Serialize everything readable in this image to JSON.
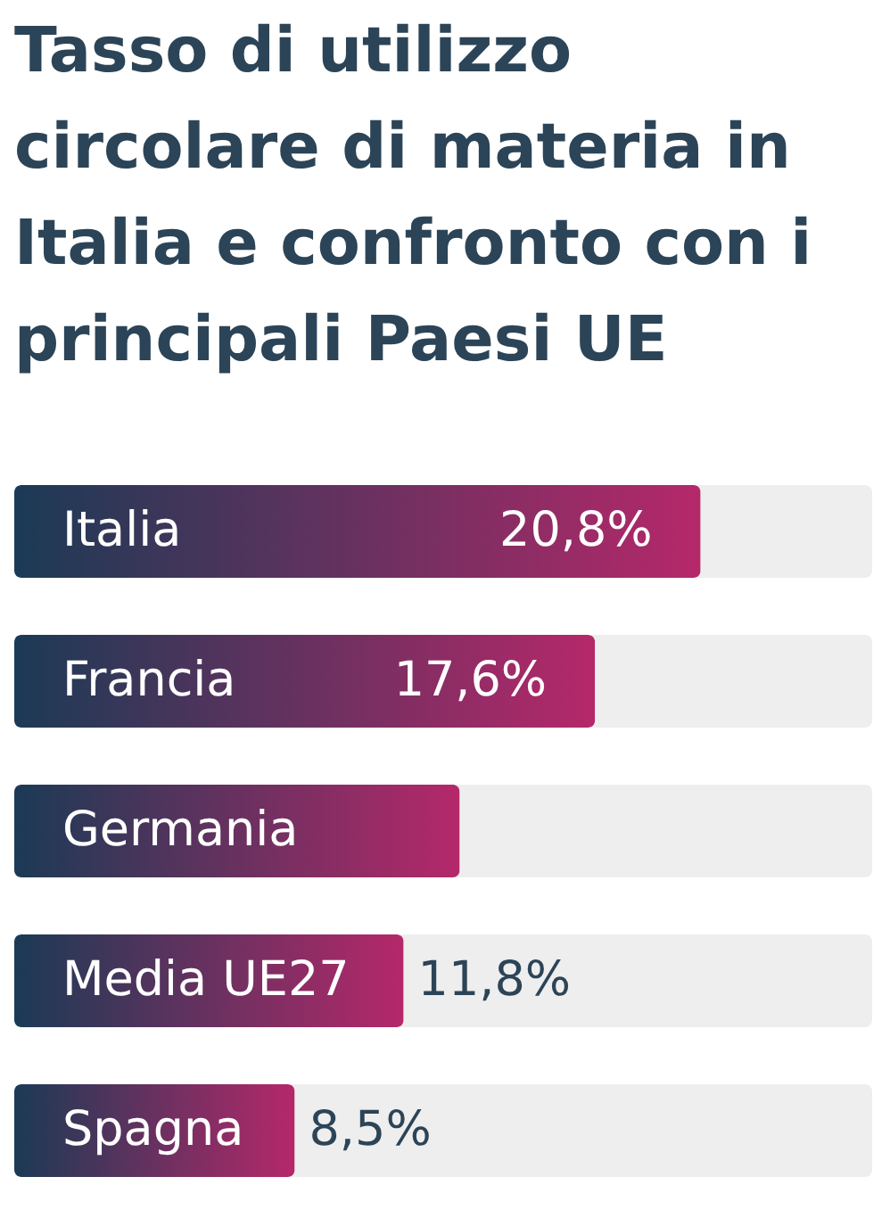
{
  "chart_data": {
    "type": "bar",
    "orientation": "horizontal",
    "title": "Tasso di utilizzo circolare di materia in Italia e confronto con i principali Paesi UE",
    "categories": [
      "Italia",
      "Francia",
      "Germania",
      "Media UE27",
      "Spagna"
    ],
    "values": [
      20.8,
      17.6,
      13.5,
      11.8,
      8.5
    ],
    "value_labels": [
      "20,8%",
      "17,6%",
      null,
      "11,8%",
      "8,5%"
    ],
    "color": "#b5286a",
    "xlim": [
      0,
      26
    ]
  }
}
